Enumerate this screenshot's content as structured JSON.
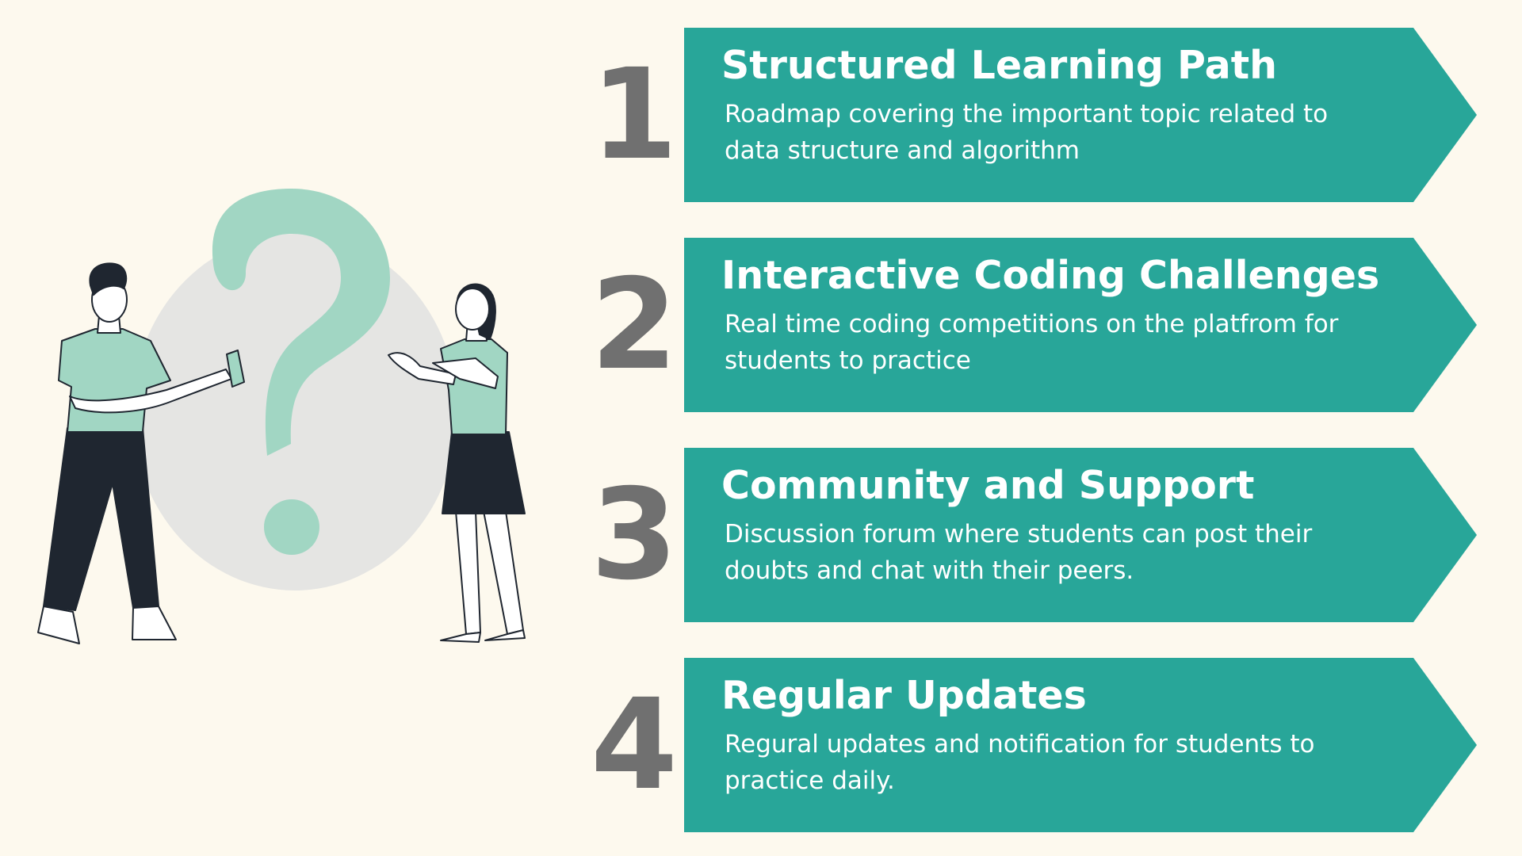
{
  "colors": {
    "background": "#fdf9ee",
    "accent_teal": "#28a699",
    "number_gray": "#707070",
    "mint": "#a1d6c3",
    "oval_gray": "#e5e5e3",
    "dark": "#1f2630"
  },
  "illustration": {
    "icon": "question-mark-icon",
    "people": [
      "man-figure",
      "woman-figure"
    ]
  },
  "steps": [
    {
      "number": "1",
      "title": "Structured Learning Path",
      "description": "Roadmap covering  the important topic related to data structure and algorithm"
    },
    {
      "number": "2",
      "title": "Interactive Coding Challenges",
      "description": "Real time coding competitions on the platfrom for students to practice"
    },
    {
      "number": "3",
      "title": "Community and Support",
      "description": "Discussion forum where students can post their doubts and chat with their peers."
    },
    {
      "number": "4",
      "title": "Regular Updates",
      "description": "Regural updates and notification for students to practice daily."
    }
  ]
}
